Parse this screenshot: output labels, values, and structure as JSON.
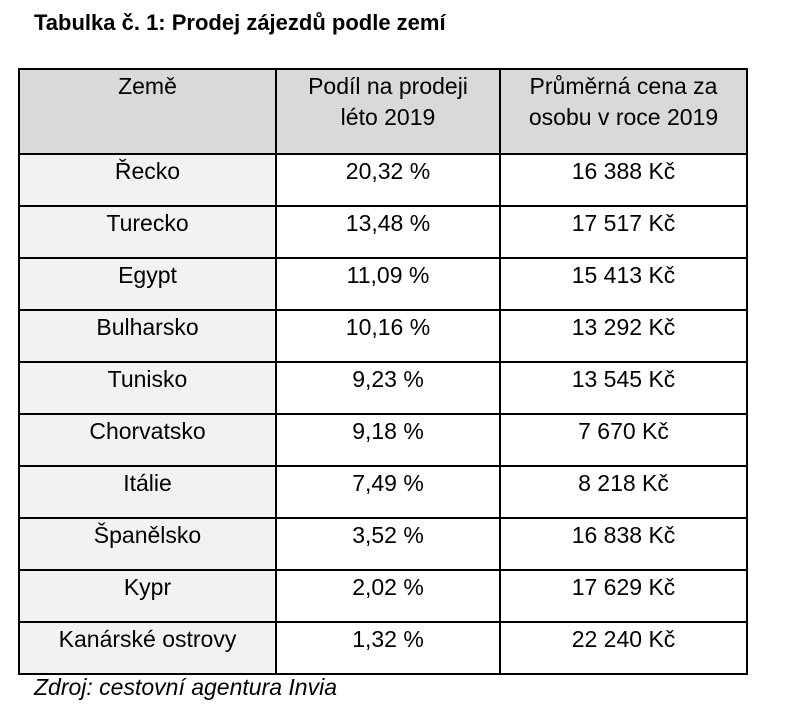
{
  "document": {
    "title": "Tabulka č. 1: Prodej zájezdů podle zemí",
    "source": "Zdroj: cestovní agentura Invia"
  },
  "table": {
    "headers": [
      [
        "Země"
      ],
      [
        "Podíl na prodeji",
        "léto 2019"
      ],
      [
        "Průměrná cena za",
        "osobu v roce 2019"
      ]
    ],
    "rows": [
      {
        "country": "Řecko",
        "share": "20,32 %",
        "price": "16 388 Kč"
      },
      {
        "country": "Turecko",
        "share": "13,48 %",
        "price": "17 517 Kč"
      },
      {
        "country": "Egypt",
        "share": "11,09 %",
        "price": "15 413 Kč"
      },
      {
        "country": "Bulharsko",
        "share": "10,16 %",
        "price": "13 292 Kč"
      },
      {
        "country": "Tunisko",
        "share": "9,23 %",
        "price": "13 545 Kč"
      },
      {
        "country": "Chorvatsko",
        "share": "9,18 %",
        "price": "7 670 Kč"
      },
      {
        "country": "Itálie",
        "share": "7,49 %",
        "price": "8 218 Kč"
      },
      {
        "country": "Španělsko",
        "share": "3,52 %",
        "price": "16 838 Kč"
      },
      {
        "country": "Kypr",
        "share": "2,02 %",
        "price": "17 629 Kč"
      },
      {
        "country": "Kanárské ostrovy",
        "share": "1,32 %",
        "price": "22 240 Kč"
      }
    ]
  },
  "colors": {
    "header_background": "#d9d9d9",
    "country_cell_background": "#f2f2f2",
    "border": "#000000"
  }
}
